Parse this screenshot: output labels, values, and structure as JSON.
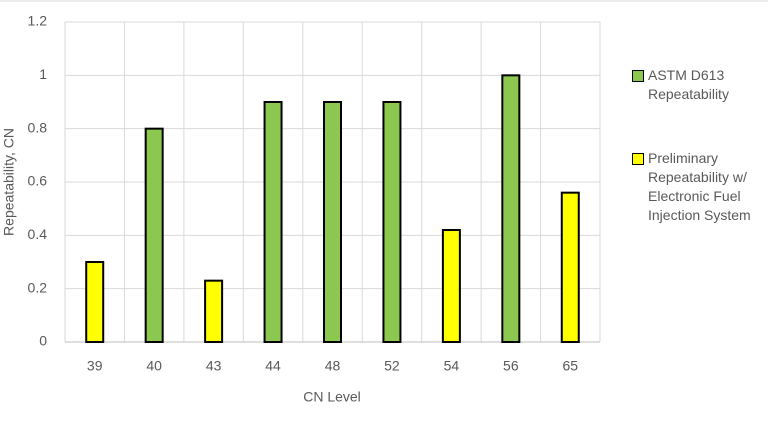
{
  "chart_data": {
    "type": "bar",
    "x_label": "CN Level",
    "y_label": "Repeatability, CN",
    "categories": [
      "39",
      "40",
      "43",
      "44",
      "48",
      "52",
      "54",
      "56",
      "65"
    ],
    "series": [
      {
        "name": "ASTM D613 Repeatability",
        "color": "#8cc850",
        "values": [
          null,
          0.8,
          null,
          0.9,
          0.9,
          0.9,
          null,
          1.0,
          null
        ]
      },
      {
        "name": "Preliminary Repeatability w/ Electronic Fuel Injection System",
        "color": "#ffff00",
        "values": [
          0.3,
          null,
          0.23,
          null,
          null,
          null,
          0.42,
          null,
          0.56
        ]
      }
    ],
    "ylim": [
      0,
      1.2
    ],
    "yticks": [
      0,
      0.2,
      0.4,
      0.6,
      0.8,
      1,
      1.2
    ],
    "grid": true,
    "legend": "right"
  }
}
